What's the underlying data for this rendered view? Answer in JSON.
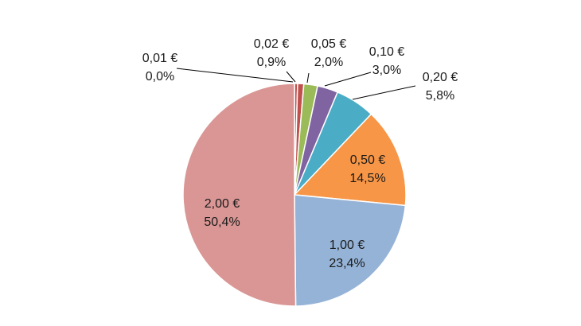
{
  "chart_data": {
    "type": "pie",
    "categories": [
      "0,01 €",
      "0,02 €",
      "0,05 €",
      "0,10 €",
      "0,20 €",
      "0,50 €",
      "1,00 €",
      "2,00 €"
    ],
    "values": [
      0.0,
      0.9,
      2.0,
      3.0,
      5.8,
      14.5,
      23.4,
      50.4
    ],
    "value_labels": [
      "0,0%",
      "0,9%",
      "2,0%",
      "3,0%",
      "5,8%",
      "14,5%",
      "23,4%",
      "50,4%"
    ],
    "colors": [
      "#c0504d",
      "#c0504d",
      "#9bbb59",
      "#8064a2",
      "#4bacc6",
      "#f79646",
      "#95b3d7",
      "#d99694"
    ],
    "start_angle_deg": 0,
    "direction": "clockwise",
    "legend": "none"
  }
}
